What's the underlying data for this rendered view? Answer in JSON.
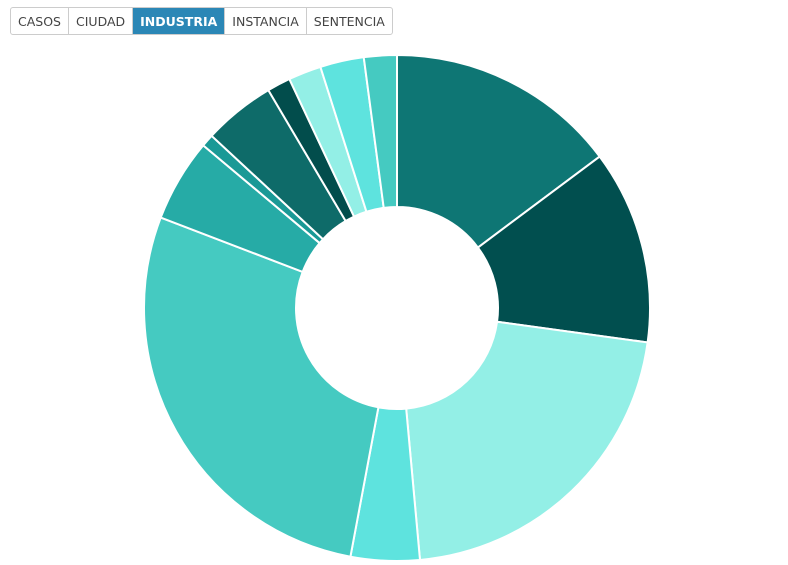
{
  "tabs": {
    "items": [
      "CASOS",
      "CIUDAD",
      "INDUSTRIA",
      "INSTANCIA",
      "SENTENCIA"
    ],
    "selected": 2
  },
  "chart_data": {
    "type": "pie",
    "values": [
      14.8,
      12.4,
      21.4,
      4.4,
      27.9,
      5.3,
      0.8,
      4.6,
      1.5,
      2.1,
      2.8,
      2.1
    ],
    "colors": [
      "#0e7674",
      "#014f4f",
      "#93efe6",
      "#5ee3de",
      "#45cac1",
      "#26aba6",
      "#1a9996",
      "#0e6b69",
      "#024d4c",
      "#93efe6",
      "#5ee3de",
      "#45cac1"
    ]
  }
}
